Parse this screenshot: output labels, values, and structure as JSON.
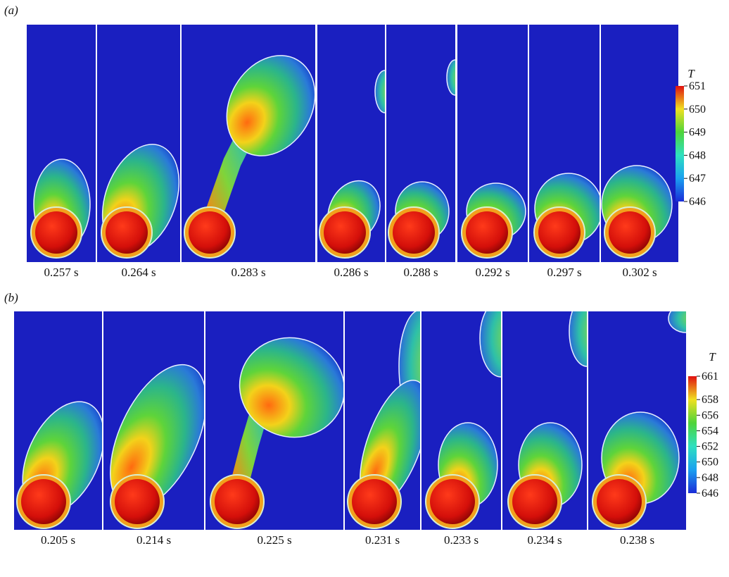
{
  "panels": [
    {
      "label": "(a)",
      "times": [
        "0.257 s",
        "0.264 s",
        "0.283 s",
        "0.286 s",
        "0.288 s",
        "0.292 s",
        "0.297 s",
        "0.302 s"
      ],
      "colorbar": {
        "title": "T",
        "ticks": [
          651,
          650,
          649,
          648,
          647,
          646
        ]
      }
    },
    {
      "label": "(b)",
      "times": [
        "0.205 s",
        "0.214 s",
        "0.225 s",
        "0.231 s",
        "0.233 s",
        "0.234 s",
        "0.238 s"
      ],
      "colorbar": {
        "title": "T",
        "ticks": [
          661,
          658,
          656,
          654,
          652,
          650,
          648,
          646
        ]
      }
    }
  ]
}
